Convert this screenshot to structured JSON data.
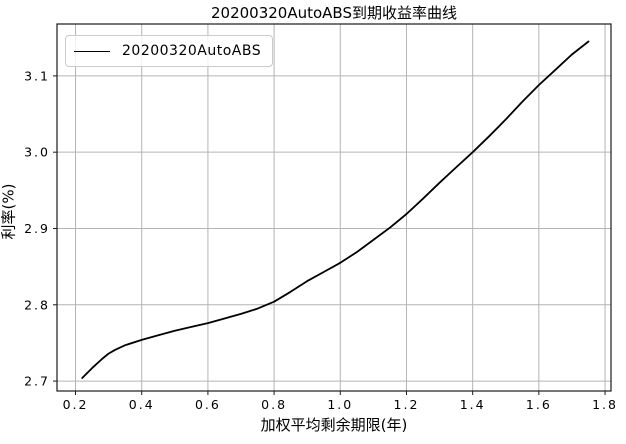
{
  "chart_data": {
    "type": "line",
    "title": "20200320AutoABS到期收益率曲线",
    "xlabel": "加权平均剩余期限(年)",
    "ylabel": "利率(%)",
    "xlim": [
      0.144,
      1.818
    ],
    "ylim": [
      2.687,
      3.168
    ],
    "xticks": [
      0.2,
      0.4,
      0.6,
      0.8,
      1.0,
      1.2,
      1.4,
      1.6,
      1.8
    ],
    "xtick_labels": [
      "0.2",
      "0.4",
      "0.6",
      "0.8",
      "1.0",
      "1.2",
      "1.4",
      "1.6",
      "1.8"
    ],
    "yticks": [
      2.7,
      2.8,
      2.9,
      3.0,
      3.1
    ],
    "ytick_labels": [
      "2.7",
      "2.8",
      "2.9",
      "3.0",
      "3.1"
    ],
    "grid": true,
    "legend": {
      "position": "upper left",
      "entries": [
        "20200320AutoABS"
      ]
    },
    "series": [
      {
        "name": "20200320AutoABS",
        "color": "#000000",
        "x": [
          0.22,
          0.25,
          0.28,
          0.3,
          0.32,
          0.35,
          0.4,
          0.45,
          0.5,
          0.55,
          0.6,
          0.65,
          0.7,
          0.75,
          0.8,
          0.85,
          0.9,
          0.95,
          1.0,
          1.05,
          1.1,
          1.15,
          1.2,
          1.25,
          1.3,
          1.35,
          1.4,
          1.45,
          1.5,
          1.55,
          1.6,
          1.65,
          1.7,
          1.75
        ],
        "y": [
          2.704,
          2.717,
          2.729,
          2.736,
          2.741,
          2.747,
          2.754,
          2.76,
          2.766,
          2.771,
          2.776,
          2.782,
          2.788,
          2.795,
          2.804,
          2.817,
          2.831,
          2.843,
          2.855,
          2.869,
          2.885,
          2.901,
          2.919,
          2.939,
          2.96,
          2.98,
          3.0,
          3.021,
          3.043,
          3.066,
          3.088,
          3.108,
          3.128,
          3.145
        ]
      }
    ],
    "colors": {
      "line": "#000000",
      "grid": "#b4b4b4",
      "spine": "#1a1a1a",
      "background": "#ffffff",
      "legend_border": "#cbcbcb"
    }
  }
}
